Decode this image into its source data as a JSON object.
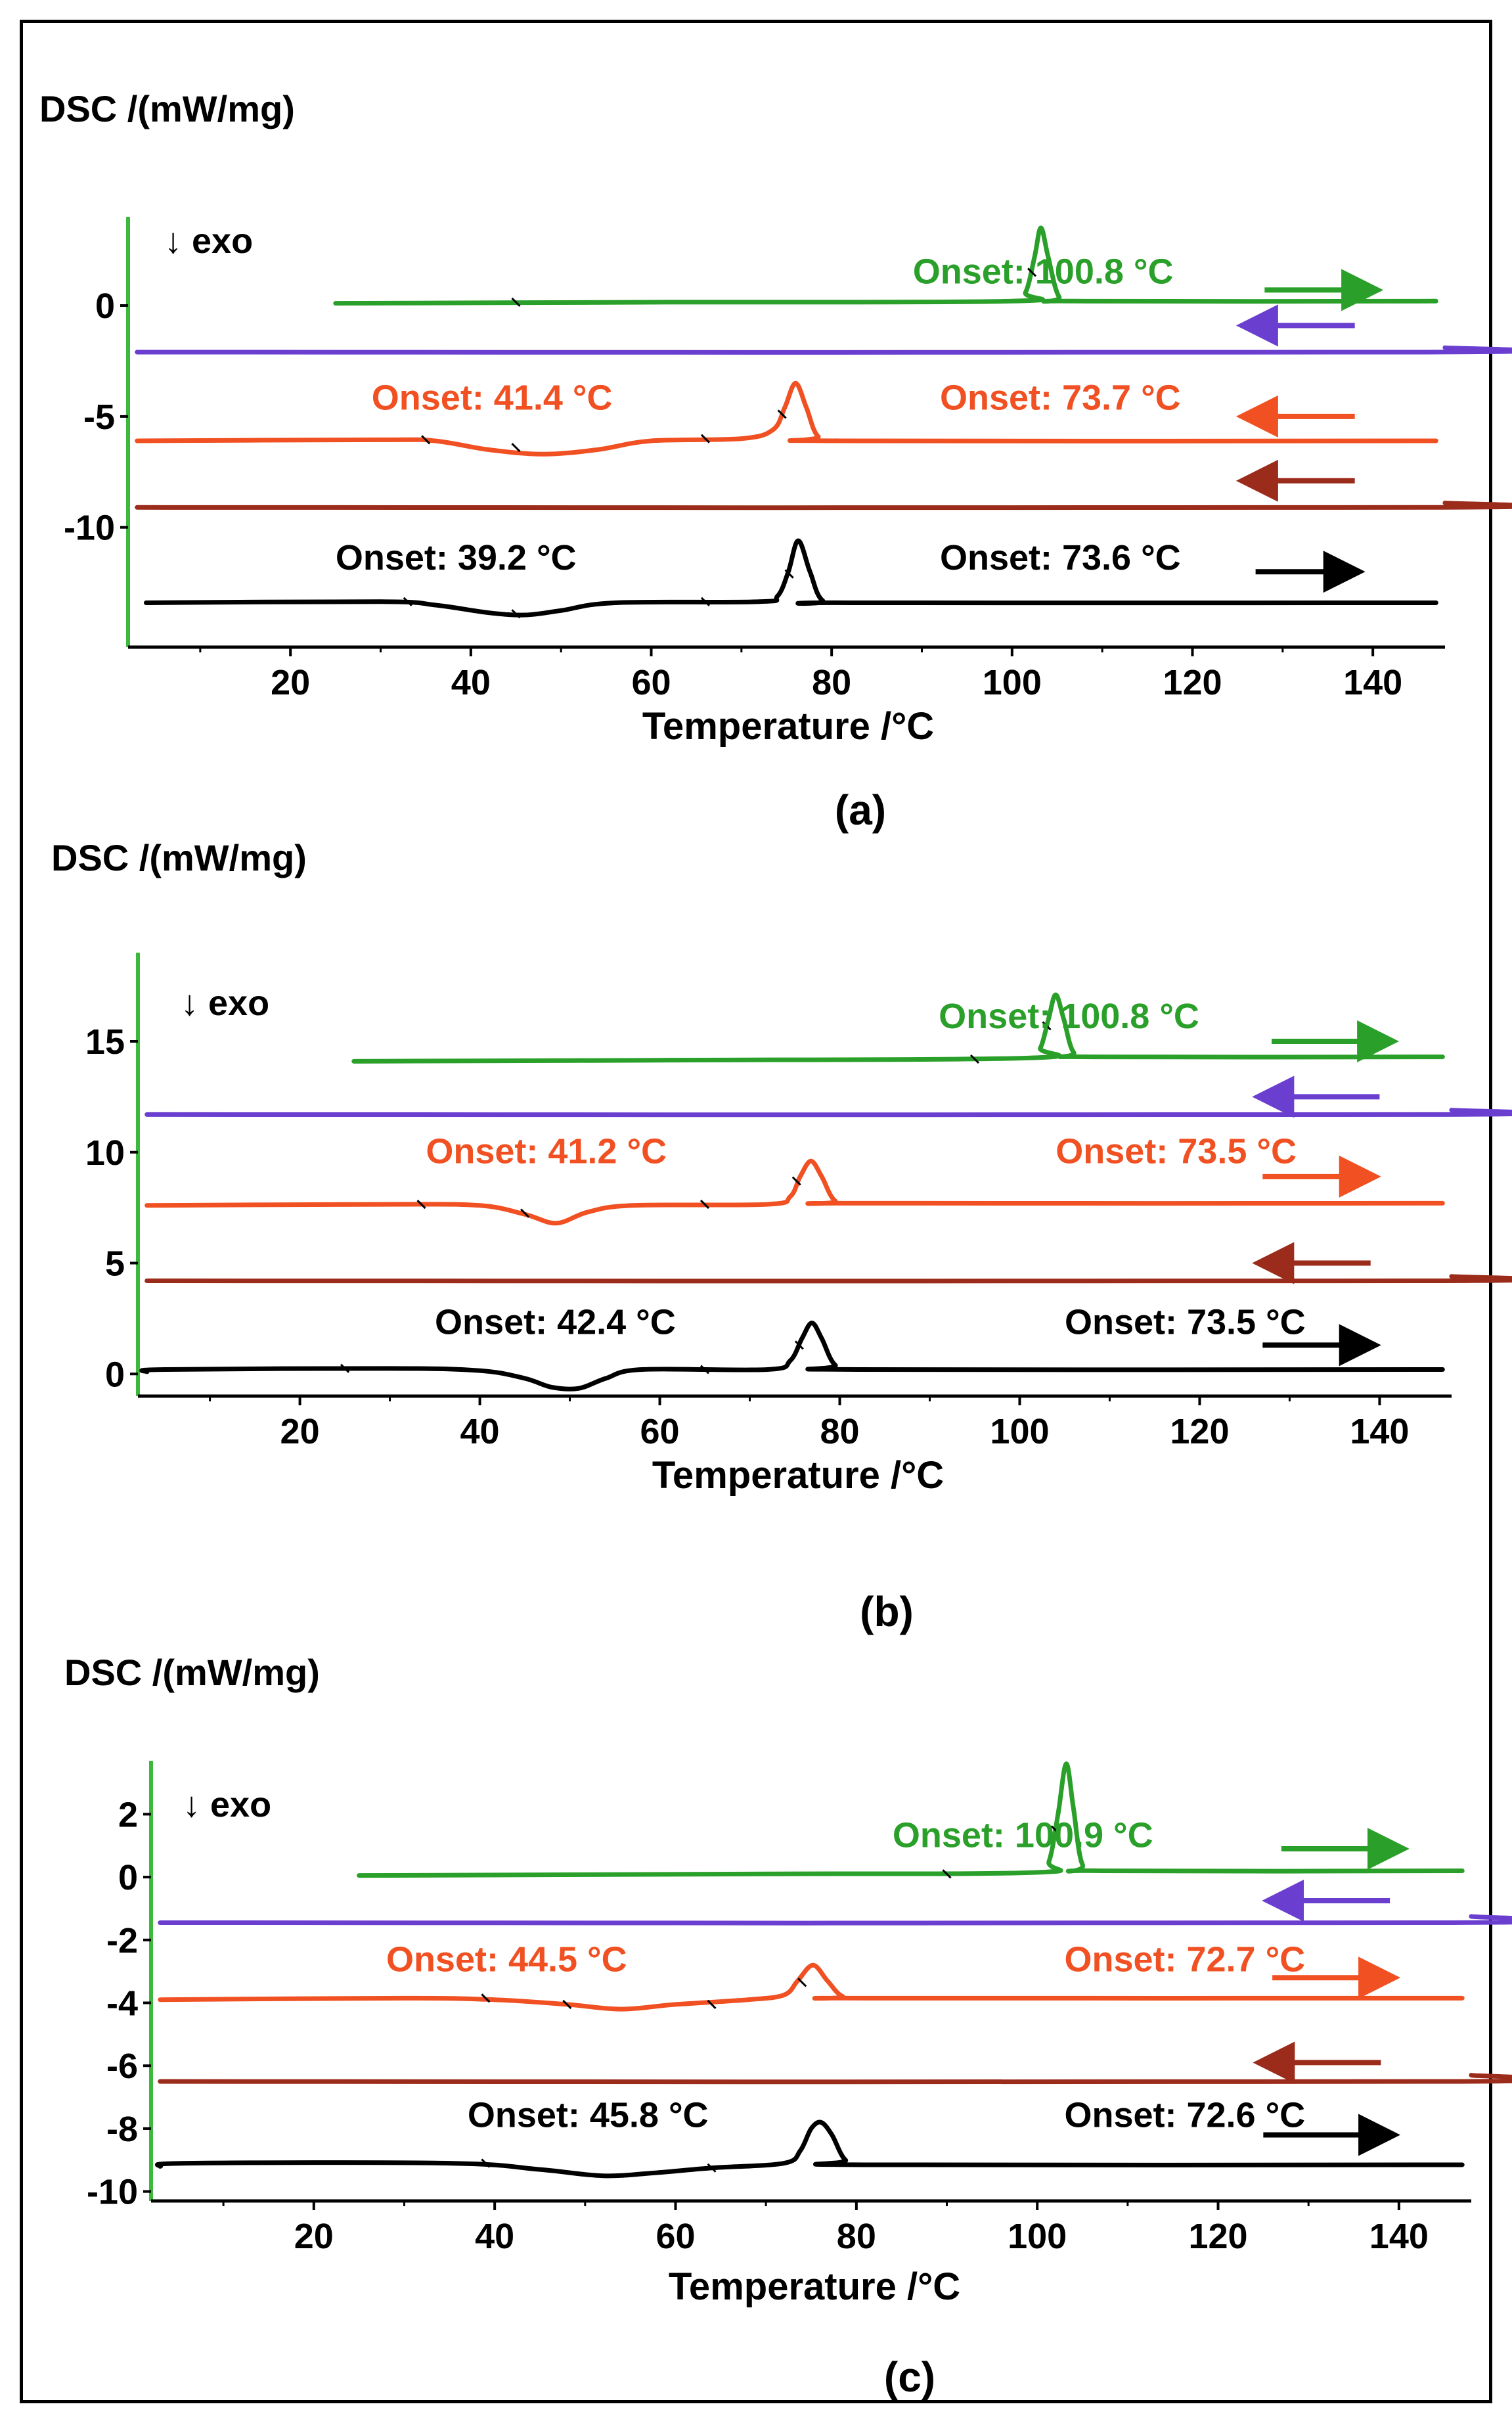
{
  "figure": {
    "colors": {
      "green": "#2aa02a",
      "purple": "#6a3fd0",
      "orange": "#f05022",
      "darkred": "#9b2b1a",
      "black": "#000000",
      "axis_green": "#3cb83c"
    }
  },
  "chart_data": [
    {
      "type": "line",
      "panel_label": "(a)",
      "ylabel": "DSC /(mW/mg)",
      "xlabel": "Temperature /°C",
      "annotation": "↓ exo",
      "xlim": [
        2,
        148
      ],
      "ylim": [
        -15.4,
        4.0
      ],
      "xticks": [
        20,
        40,
        60,
        80,
        100,
        120,
        140
      ],
      "yticks": [
        0,
        -5,
        -10
      ],
      "series": [
        {
          "color_key": "green",
          "direction": "right",
          "points": [
            [
              25,
              0.1
            ],
            [
              60,
              0.15
            ],
            [
              100,
              0.2
            ],
            [
              101.5,
              0.6
            ],
            [
              102.5,
              2.2
            ],
            [
              103.2,
              3.5
            ],
            [
              104,
              2.2
            ],
            [
              105.2,
              0.4
            ],
            [
              107,
              0.2
            ],
            [
              147,
              0.2
            ]
          ],
          "onset_marks": [
            [
              45,
              0.15
            ],
            [
              102.2,
              1.5
            ]
          ],
          "labels": [
            {
              "text": "Onset: 100.8 °C",
              "x": 89,
              "y": 1.0
            }
          ],
          "arrow": {
            "from": 128,
            "to": 140,
            "y": 0.7
          }
        },
        {
          "color_key": "purple",
          "direction": "left",
          "points": [
            [
              3,
              -2.1
            ],
            [
              146,
              -2.1
            ],
            [
              148,
              -1.9
            ]
          ],
          "onset_marks": [],
          "labels": [],
          "arrow": {
            "from": 138,
            "to": 126,
            "y": -0.9
          }
        },
        {
          "color_key": "orange",
          "direction": "left",
          "points": [
            [
              3,
              -6.1
            ],
            [
              30,
              -6.05
            ],
            [
              36,
              -6.1
            ],
            [
              42,
              -6.5
            ],
            [
              48,
              -6.7
            ],
            [
              54,
              -6.5
            ],
            [
              60,
              -6.1
            ],
            [
              70,
              -6.0
            ],
            [
              73.5,
              -5.6
            ],
            [
              74.8,
              -4.6
            ],
            [
              76,
              -3.5
            ],
            [
              77.2,
              -4.6
            ],
            [
              78.5,
              -5.9
            ],
            [
              81,
              -6.1
            ],
            [
              147,
              -6.1
            ]
          ],
          "onset_marks": [
            [
              35,
              -6.05
            ],
            [
              45,
              -6.4
            ],
            [
              66,
              -6.0
            ],
            [
              74.5,
              -4.9
            ]
          ],
          "labels": [
            {
              "text": "Onset: 41.4 °C",
              "x": 29,
              "y": -4.7
            },
            {
              "text": "Onset: 73.7 °C",
              "x": 92,
              "y": -4.7
            }
          ],
          "arrow": {
            "from": 138,
            "to": 126,
            "y": -5.0
          }
        },
        {
          "color_key": "darkred",
          "direction": "left",
          "points": [
            [
              3,
              -9.1
            ],
            [
              146,
              -9.1
            ],
            [
              148,
              -8.9
            ]
          ],
          "onset_marks": [],
          "labels": [],
          "arrow": {
            "from": 138,
            "to": 126,
            "y": -7.9
          }
        },
        {
          "color_key": "black",
          "direction": "right",
          "points": [
            [
              4,
              -13.4
            ],
            [
              30,
              -13.35
            ],
            [
              36,
              -13.5
            ],
            [
              42,
              -13.85
            ],
            [
              46,
              -13.95
            ],
            [
              50,
              -13.75
            ],
            [
              56,
              -13.4
            ],
            [
              72,
              -13.35
            ],
            [
              74,
              -13.1
            ],
            [
              75.2,
              -12.0
            ],
            [
              76.3,
              -10.6
            ],
            [
              77.6,
              -12.0
            ],
            [
              79,
              -13.3
            ],
            [
              82,
              -13.4
            ],
            [
              147,
              -13.4
            ]
          ],
          "onset_marks": [
            [
              33,
              -13.35
            ],
            [
              45,
              -13.9
            ],
            [
              66,
              -13.35
            ],
            [
              75.3,
              -12.1
            ]
          ],
          "labels": [
            {
              "text": "Onset: 39.2 °C",
              "x": 25,
              "y": -11.9
            },
            {
              "text": "Onset: 73.6 °C",
              "x": 92,
              "y": -11.9
            }
          ],
          "arrow": {
            "from": 127,
            "to": 138,
            "y": -12.0
          }
        }
      ]
    },
    {
      "type": "line",
      "panel_label": "(b)",
      "ylabel": "DSC /(mW/mg)",
      "xlabel": "Temperature /°C",
      "annotation": "↓ exo",
      "xlim": [
        2,
        148
      ],
      "ylim": [
        -1.0,
        19.0
      ],
      "xticks": [
        20,
        40,
        60,
        80,
        100,
        120,
        140
      ],
      "yticks": [
        15,
        10,
        5,
        0
      ],
      "series": [
        {
          "color_key": "green",
          "direction": "right",
          "points": [
            [
              26,
              14.1
            ],
            [
              60,
              14.15
            ],
            [
              101,
              14.25
            ],
            [
              102.3,
              14.7
            ],
            [
              103.2,
              16.0
            ],
            [
              104,
              17.1
            ],
            [
              104.9,
              16.0
            ],
            [
              106,
              14.5
            ],
            [
              108,
              14.3
            ],
            [
              147,
              14.3
            ]
          ],
          "onset_marks": [
            [
              95,
              14.2
            ],
            [
              103,
              15.7
            ]
          ],
          "labels": [
            {
              "text": "Onset: 100.8 °C",
              "x": 91,
              "y": 15.6
            }
          ],
          "arrow": {
            "from": 128,
            "to": 141,
            "y": 15.0
          }
        },
        {
          "color_key": "purple",
          "direction": "left",
          "points": [
            [
              3,
              11.7
            ],
            [
              146,
              11.7
            ],
            [
              148,
              11.9
            ]
          ],
          "onset_marks": [],
          "labels": [],
          "arrow": {
            "from": 140,
            "to": 127,
            "y": 12.5
          }
        },
        {
          "color_key": "orange",
          "direction": "right",
          "points": [
            [
              3,
              7.6
            ],
            [
              30,
              7.65
            ],
            [
              40,
              7.6
            ],
            [
              45,
              7.2
            ],
            [
              48.5,
              6.8
            ],
            [
              52,
              7.3
            ],
            [
              57,
              7.6
            ],
            [
              72,
              7.65
            ],
            [
              74.5,
              8.0
            ],
            [
              75.6,
              8.9
            ],
            [
              76.8,
              9.6
            ],
            [
              78,
              8.9
            ],
            [
              79.5,
              7.8
            ],
            [
              82,
              7.7
            ],
            [
              147,
              7.7
            ]
          ],
          "onset_marks": [
            [
              33.5,
              7.65
            ],
            [
              45,
              7.25
            ],
            [
              65,
              7.65
            ],
            [
              75.2,
              8.7
            ]
          ],
          "labels": [
            {
              "text": "Onset: 41.2 °C",
              "x": 34,
              "y": 9.5
            },
            {
              "text": "Onset: 73.5 °C",
              "x": 104,
              "y": 9.5
            }
          ],
          "arrow": {
            "from": 127,
            "to": 139,
            "y": 8.9
          }
        },
        {
          "color_key": "darkred",
          "direction": "left",
          "points": [
            [
              3,
              4.2
            ],
            [
              146,
              4.2
            ],
            [
              148,
              4.4
            ]
          ],
          "onset_marks": [],
          "labels": [],
          "arrow": {
            "from": 139,
            "to": 127,
            "y": 5.0
          }
        },
        {
          "color_key": "black",
          "direction": "right",
          "points": [
            [
              3,
              0.1
            ],
            [
              5,
              0.2
            ],
            [
              30,
              0.25
            ],
            [
              40,
              0.15
            ],
            [
              45,
              -0.2
            ],
            [
              48,
              -0.6
            ],
            [
              51,
              -0.65
            ],
            [
              54,
              -0.2
            ],
            [
              58,
              0.2
            ],
            [
              72,
              0.2
            ],
            [
              74.5,
              0.6
            ],
            [
              75.8,
              1.6
            ],
            [
              76.9,
              2.3
            ],
            [
              78,
              1.6
            ],
            [
              79.5,
              0.4
            ],
            [
              82,
              0.2
            ],
            [
              147,
              0.2
            ]
          ],
          "onset_marks": [
            [
              25,
              0.25
            ],
            [
              65,
              0.2
            ],
            [
              75.5,
              1.3
            ]
          ],
          "labels": [
            {
              "text": "Onset: 42.4 °C",
              "x": 35,
              "y": 1.8
            },
            {
              "text": "Onset: 73.5 °C",
              "x": 105,
              "y": 1.8
            }
          ],
          "arrow": {
            "from": 127,
            "to": 139,
            "y": 1.3
          }
        }
      ]
    },
    {
      "type": "line",
      "panel_label": "(c)",
      "ylabel": "DSC /(mW/mg)",
      "xlabel": "Temperature /°C",
      "annotation": "↓ exo",
      "xlim": [
        2,
        148
      ],
      "ylim": [
        -10.3,
        3.7
      ],
      "xticks": [
        20,
        40,
        60,
        80,
        100,
        120,
        140
      ],
      "yticks": [
        2,
        0,
        -2,
        -4,
        -6,
        -8,
        -10
      ],
      "series": [
        {
          "color_key": "green",
          "direction": "right",
          "points": [
            [
              25,
              0.05
            ],
            [
              70,
              0.1
            ],
            [
              100,
              0.15
            ],
            [
              101.3,
              0.5
            ],
            [
              102.3,
              2.0
            ],
            [
              103.2,
              3.6
            ],
            [
              104,
              2.2
            ],
            [
              105,
              0.4
            ],
            [
              107,
              0.2
            ],
            [
              147,
              0.2
            ]
          ],
          "onset_marks": [
            [
              90,
              0.1
            ],
            [
              102,
              1.5
            ]
          ],
          "labels": [
            {
              "text": "Onset: 100.9 °C",
              "x": 84,
              "y": 0.95
            }
          ],
          "arrow": {
            "from": 127,
            "to": 140,
            "y": 0.9
          }
        },
        {
          "color_key": "purple",
          "direction": "left",
          "points": [
            [
              3,
              -1.45
            ],
            [
              146,
              -1.45
            ],
            [
              148,
              -1.25
            ]
          ],
          "onset_marks": [],
          "labels": [],
          "arrow": {
            "from": 139,
            "to": 126,
            "y": -0.75
          }
        },
        {
          "color_key": "orange",
          "direction": "right",
          "points": [
            [
              3,
              -3.9
            ],
            [
              30,
              -3.85
            ],
            [
              40,
              -3.9
            ],
            [
              48,
              -4.05
            ],
            [
              54,
              -4.2
            ],
            [
              60,
              -4.05
            ],
            [
              68,
              -3.9
            ],
            [
              72,
              -3.75
            ],
            [
              73.5,
              -3.3
            ],
            [
              75.2,
              -2.8
            ],
            [
              76.8,
              -3.3
            ],
            [
              78.5,
              -3.8
            ],
            [
              81,
              -3.85
            ],
            [
              147,
              -3.85
            ]
          ],
          "onset_marks": [
            [
              39,
              -3.85
            ],
            [
              48,
              -4.05
            ],
            [
              64,
              -4.05
            ],
            [
              74,
              -3.35
            ]
          ],
          "labels": [
            {
              "text": "Onset: 44.5 °C",
              "x": 28,
              "y": -3.0
            },
            {
              "text": "Onset: 72.7 °C",
              "x": 103,
              "y": -3.0
            }
          ],
          "arrow": {
            "from": 126,
            "to": 139,
            "y": -3.2
          }
        },
        {
          "color_key": "darkred",
          "direction": "left",
          "points": [
            [
              3,
              -6.5
            ],
            [
              146,
              -6.5
            ],
            [
              148,
              -6.3
            ]
          ],
          "onset_marks": [],
          "labels": [],
          "arrow": {
            "from": 138,
            "to": 125,
            "y": -5.9
          }
        },
        {
          "color_key": "black",
          "direction": "right",
          "points": [
            [
              3,
              -9.2
            ],
            [
              6,
              -9.1
            ],
            [
              35,
              -9.1
            ],
            [
              45,
              -9.3
            ],
            [
              52,
              -9.5
            ],
            [
              58,
              -9.4
            ],
            [
              64,
              -9.25
            ],
            [
              72,
              -9.1
            ],
            [
              73.8,
              -8.7
            ],
            [
              75,
              -8.0
            ],
            [
              76.1,
              -7.8
            ],
            [
              77.3,
              -8.2
            ],
            [
              78.8,
              -9.0
            ],
            [
              81,
              -9.15
            ],
            [
              147,
              -9.15
            ]
          ],
          "onset_marks": [
            [
              39,
              -9.1
            ],
            [
              64,
              -9.25
            ]
          ],
          "labels": [
            {
              "text": "Onset: 45.8 °C",
              "x": 37,
              "y": -7.95
            },
            {
              "text": "Onset: 72.6 °C",
              "x": 103,
              "y": -7.95
            }
          ],
          "arrow": {
            "from": 125,
            "to": 139,
            "y": -8.2
          }
        }
      ]
    }
  ]
}
